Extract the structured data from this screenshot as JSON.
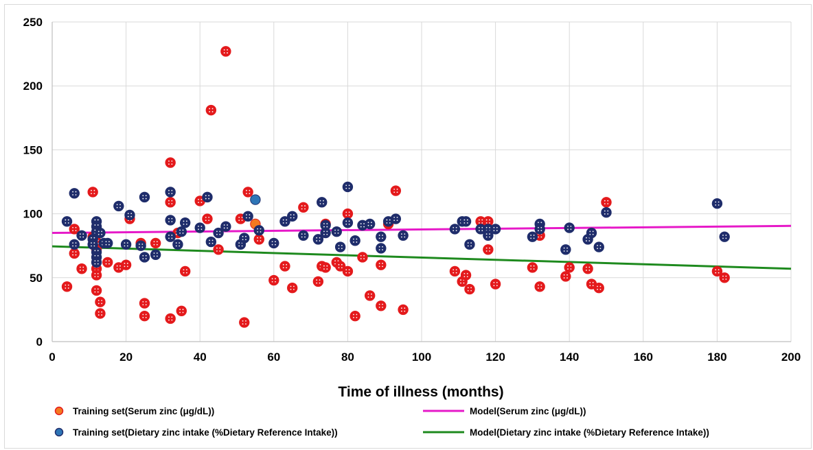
{
  "chart_data": {
    "type": "scatter",
    "title": "",
    "xlabel": "Time of illness (months)",
    "ylabel": "",
    "xlim": [
      0,
      200
    ],
    "ylim": [
      0,
      250
    ],
    "x_ticks": [
      0,
      20,
      40,
      60,
      80,
      100,
      120,
      140,
      160,
      180,
      200
    ],
    "y_ticks": [
      0,
      50,
      100,
      150,
      200,
      250
    ],
    "grid": true,
    "legend_position": "bottom",
    "series": [
      {
        "name": "Training set(Serum zinc (μg/dL))",
        "kind": "scatter",
        "color": "#e41a1c",
        "highlight_color": "#f47920",
        "points": [
          [
            4,
            43
          ],
          [
            6,
            88
          ],
          [
            6,
            69
          ],
          [
            8,
            57
          ],
          [
            11,
            117
          ],
          [
            11,
            82
          ],
          [
            12,
            85
          ],
          [
            12,
            78
          ],
          [
            12,
            72
          ],
          [
            12,
            57
          ],
          [
            12,
            52
          ],
          [
            12,
            40
          ],
          [
            13,
            31
          ],
          [
            13,
            22
          ],
          [
            15,
            62
          ],
          [
            18,
            58
          ],
          [
            20,
            60
          ],
          [
            21,
            96
          ],
          [
            24,
            77
          ],
          [
            25,
            30
          ],
          [
            25,
            20
          ],
          [
            28,
            77
          ],
          [
            32,
            140
          ],
          [
            32,
            109
          ],
          [
            32,
            18
          ],
          [
            34,
            85
          ],
          [
            35,
            24
          ],
          [
            36,
            55
          ],
          [
            40,
            110
          ],
          [
            42,
            96
          ],
          [
            43,
            181
          ],
          [
            45,
            72
          ],
          [
            47,
            227
          ],
          [
            51,
            96
          ],
          [
            52,
            15
          ],
          [
            53,
            117
          ],
          [
            55,
            92
          ],
          [
            56,
            80
          ],
          [
            60,
            48
          ],
          [
            63,
            59
          ],
          [
            65,
            42
          ],
          [
            68,
            105
          ],
          [
            72,
            47
          ],
          [
            73,
            59
          ],
          [
            74,
            92
          ],
          [
            74,
            58
          ],
          [
            77,
            62
          ],
          [
            78,
            59
          ],
          [
            80,
            100
          ],
          [
            80,
            55
          ],
          [
            82,
            20
          ],
          [
            84,
            66
          ],
          [
            86,
            36
          ],
          [
            89,
            60
          ],
          [
            89,
            28
          ],
          [
            91,
            92
          ],
          [
            93,
            118
          ],
          [
            95,
            25
          ],
          [
            109,
            55
          ],
          [
            111,
            47
          ],
          [
            112,
            52
          ],
          [
            113,
            41
          ],
          [
            116,
            94
          ],
          [
            118,
            94
          ],
          [
            118,
            72
          ],
          [
            120,
            45
          ],
          [
            130,
            58
          ],
          [
            132,
            83
          ],
          [
            132,
            43
          ],
          [
            139,
            51
          ],
          [
            140,
            58
          ],
          [
            145,
            57
          ],
          [
            146,
            45
          ],
          [
            148,
            42
          ],
          [
            150,
            109
          ],
          [
            180,
            55
          ],
          [
            182,
            50
          ]
        ]
      },
      {
        "name": "Training set(Dietary zinc intake (%Dietary Reference Intake))",
        "kind": "scatter",
        "color": "#1f2d6b",
        "highlight_color": "#2e75b6",
        "points": [
          [
            4,
            94
          ],
          [
            6,
            116
          ],
          [
            6,
            76
          ],
          [
            8,
            83
          ],
          [
            11,
            80
          ],
          [
            11,
            76
          ],
          [
            12,
            94
          ],
          [
            12,
            90
          ],
          [
            12,
            86
          ],
          [
            12,
            70
          ],
          [
            12,
            66
          ],
          [
            12,
            62
          ],
          [
            13,
            85
          ],
          [
            14,
            77
          ],
          [
            15,
            77
          ],
          [
            18,
            106
          ],
          [
            20,
            76
          ],
          [
            21,
            99
          ],
          [
            24,
            75
          ],
          [
            25,
            113
          ],
          [
            25,
            66
          ],
          [
            28,
            68
          ],
          [
            32,
            117
          ],
          [
            32,
            95
          ],
          [
            32,
            82
          ],
          [
            34,
            76
          ],
          [
            35,
            86
          ],
          [
            36,
            93
          ],
          [
            40,
            89
          ],
          [
            42,
            113
          ],
          [
            43,
            78
          ],
          [
            45,
            85
          ],
          [
            47,
            90
          ],
          [
            51,
            76
          ],
          [
            52,
            81
          ],
          [
            53,
            98
          ],
          [
            55,
            111
          ],
          [
            56,
            87
          ],
          [
            60,
            77
          ],
          [
            63,
            94
          ],
          [
            65,
            98
          ],
          [
            68,
            83
          ],
          [
            72,
            80
          ],
          [
            73,
            109
          ],
          [
            74,
            85
          ],
          [
            74,
            91
          ],
          [
            77,
            86
          ],
          [
            78,
            74
          ],
          [
            80,
            121
          ],
          [
            80,
            93
          ],
          [
            82,
            79
          ],
          [
            84,
            91
          ],
          [
            86,
            92
          ],
          [
            89,
            82
          ],
          [
            89,
            73
          ],
          [
            91,
            94
          ],
          [
            93,
            96
          ],
          [
            95,
            83
          ],
          [
            109,
            88
          ],
          [
            111,
            94
          ],
          [
            112,
            94
          ],
          [
            113,
            76
          ],
          [
            116,
            88
          ],
          [
            118,
            88
          ],
          [
            118,
            83
          ],
          [
            120,
            88
          ],
          [
            130,
            82
          ],
          [
            132,
            92
          ],
          [
            132,
            88
          ],
          [
            139,
            72
          ],
          [
            140,
            89
          ],
          [
            145,
            80
          ],
          [
            146,
            85
          ],
          [
            148,
            74
          ],
          [
            150,
            101
          ],
          [
            180,
            108
          ],
          [
            182,
            82
          ]
        ]
      },
      {
        "name": "Model(Serum zinc (μg/dL))",
        "kind": "line",
        "color": "#e619c8",
        "x": [
          0,
          200
        ],
        "y": [
          85,
          90.5
        ]
      },
      {
        "name": "Model(Dietary zinc intake (%Dietary Reference Intake))",
        "kind": "line",
        "color": "#1e8a1e",
        "x": [
          0,
          200
        ],
        "y": [
          74.5,
          57
        ]
      }
    ]
  }
}
